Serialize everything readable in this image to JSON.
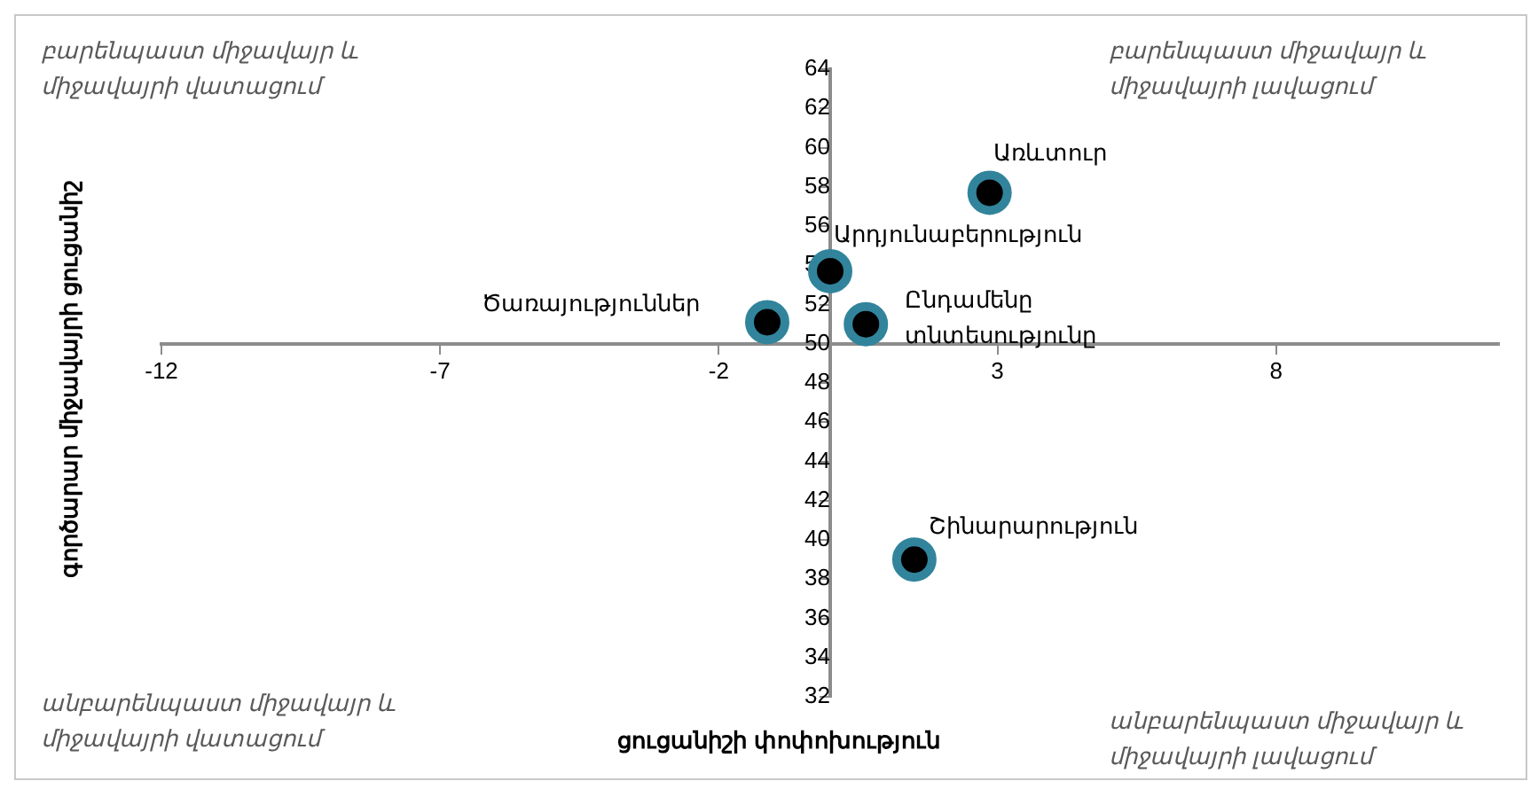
{
  "chart_data": {
    "type": "scatter",
    "xlabel": "ցուցանիշի փոփոխություն",
    "ylabel": "գործարար միջավայրի ցուցանիշ",
    "annotations": [
      "բարենպաստ միջավայր և միջավայրի վատացում",
      "բարենպաստ միջավայր և միջավայրի  լավացում",
      "անբարենպաստ միջավայր և միջավայրի վատացում",
      "անբարենպաստ միջավայր և միջավայրի լավացում"
    ],
    "series": [
      {
        "name": "Առևտուր",
        "color": "#31849b",
        "x": [
          2.86
        ],
        "values": [
          57.7
        ]
      },
      {
        "name": "Արդյունաբերություն",
        "color": "#31849b",
        "x": [
          0.0
        ],
        "values": [
          53.7
        ]
      },
      {
        "name": "Ծառայություններ",
        "color": "#31849b",
        "x": [
          -1.13
        ],
        "values": [
          51.1
        ]
      },
      {
        "name": "Ընդամենը տնտեսությունը",
        "color": "#31849b",
        "x": [
          0.64
        ],
        "values": [
          51.0
        ]
      },
      {
        "name": "Շինարարություն",
        "color": "#31849b",
        "x": [
          1.51
        ],
        "values": [
          39.0
        ]
      }
    ],
    "xlim": [
      -12,
      12
    ],
    "xticks": [
      -12,
      -7,
      -2,
      3,
      8
    ],
    "ylim": [
      32,
      64
    ],
    "yticks": [
      32,
      34,
      36,
      38,
      40,
      42,
      44,
      46,
      48,
      50,
      52,
      54,
      56,
      58,
      60,
      62,
      64
    ],
    "grid": false,
    "legend": false,
    "marker": "circle"
  }
}
